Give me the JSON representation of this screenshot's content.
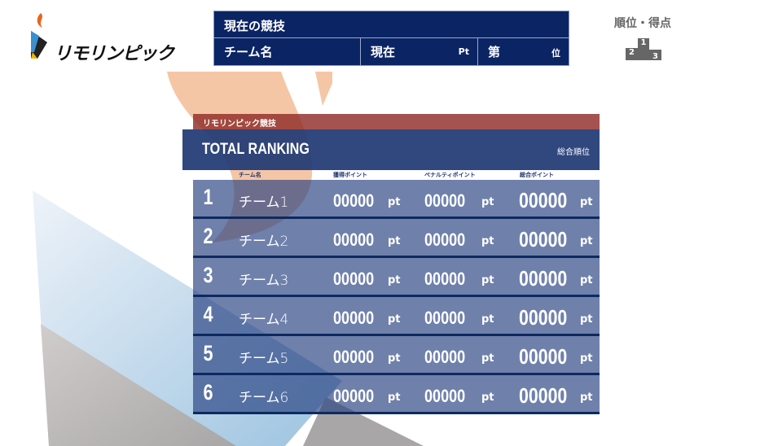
{
  "logo": {
    "text": "リモリンピック"
  },
  "current": {
    "title": "現在の競技",
    "team_label": "チーム名",
    "now_label": "現在",
    "pt_unit": "Pt",
    "rank_prefix": "第",
    "rank_suffix": "位"
  },
  "ranking_link": {
    "label": "順位・得点",
    "podium": [
      "1",
      "2",
      "3"
    ]
  },
  "panel": {
    "category": "リモリンピック競技",
    "title": "TOTAL RANKING",
    "subtitle": "総合順位",
    "columns": [
      "チーム名",
      "獲得ポイント",
      "ペナルティポイント",
      "総合ポイント"
    ],
    "unit": "pt",
    "rows": [
      {
        "rank": "1",
        "team": "チーム1",
        "earned": "00000",
        "penalty": "00000",
        "total": "00000"
      },
      {
        "rank": "2",
        "team": "チーム2",
        "earned": "00000",
        "penalty": "00000",
        "total": "00000"
      },
      {
        "rank": "3",
        "team": "チーム3",
        "earned": "00000",
        "penalty": "00000",
        "total": "00000"
      },
      {
        "rank": "4",
        "team": "チーム4",
        "earned": "00000",
        "penalty": "00000",
        "total": "00000"
      },
      {
        "rank": "5",
        "team": "チーム5",
        "earned": "00000",
        "penalty": "00000",
        "total": "00000"
      },
      {
        "rank": "6",
        "team": "チーム6",
        "earned": "00000",
        "penalty": "00000",
        "total": "00000"
      }
    ]
  },
  "colors": {
    "navy": "#0b2464",
    "red_band": "#a05050",
    "row": "#6b7ea6",
    "peach": "#f5c6a5"
  }
}
